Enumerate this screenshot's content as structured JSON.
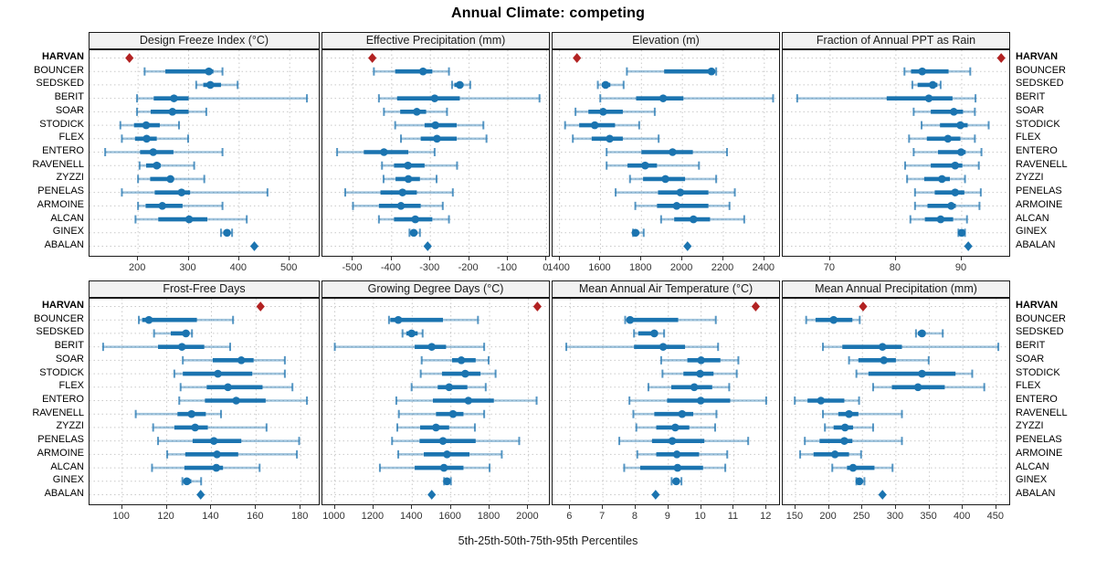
{
  "title": "Annual Climate: competing",
  "xlabel": "5th-25th-50th-75th-95th Percentiles",
  "chart_data": {
    "type": "dot-whisker percentile plot (5th-25th-50th-75th-95th)",
    "title": "Annual Climate: competing",
    "xlabel": "5th-25th-50th-75th-95th Percentiles",
    "legend": "thin whisker = 5th-95th, thick bar = 25th-75th, dot = median; HARVAN shown as red diamond, ABALAN as blue diamond",
    "rows": [
      "HARVAN",
      "BOUNCER",
      "SEDSKED",
      "BERIT",
      "SOAR",
      "STODICK",
      "FLEX",
      "ENTERO",
      "RAVENELL",
      "ZYZZI",
      "PENELAS",
      "ARMOINE",
      "ALCAN",
      "GINEX",
      "ABALAN"
    ],
    "bold_row": "HARVAN",
    "marker_rows": {
      "HARVAN": "red-diamond",
      "ABALAN": "blue-diamond"
    },
    "colors": {
      "blue": "#1b74b0",
      "whisker": "rgba(31,116,176,0.42)",
      "cap": "rgba(31,116,176,0.75)",
      "red": "#b22222",
      "grid": "#c9c9c9",
      "header_bg": "#f2f2f2",
      "border": "#1a1a1a"
    },
    "grid": "dotted horizontal per row and vertical per tick",
    "panels": [
      {
        "title": "Design Freeze Index (°C)",
        "ticks": [
          200,
          300,
          400,
          500
        ],
        "domain": [
          104,
          561
        ],
        "series": {
          "HARVAN": 183,
          "BOUNCER": [
            213,
            254,
            340,
            349,
            367
          ],
          "SEDSKED": [
            315,
            329,
            343,
            364,
            397
          ],
          "BERIT": [
            198,
            231,
            271,
            300,
            534
          ],
          "SOAR": [
            198,
            225,
            268,
            300,
            335
          ],
          "STODICK": [
            165,
            192,
            216,
            243,
            281
          ],
          "FLEX": [
            168,
            194,
            217,
            237,
            299
          ],
          "ENTERO": [
            135,
            204,
            230,
            270,
            367
          ],
          "RAVENELL": [
            203,
            216,
            237,
            245,
            311
          ],
          "ZYZZI": [
            200,
            224,
            264,
            270,
            331
          ],
          "PENELAS": [
            168,
            233,
            286,
            303,
            456
          ],
          "ARMOINE": [
            200,
            215,
            248,
            288,
            367
          ],
          "ALCAN": [
            195,
            240,
            301,
            337,
            415
          ],
          "GINEX": [
            364,
            369,
            376,
            381,
            386
          ],
          "ABALAN": 430
        }
      },
      {
        "title": "Effective Precipitation (mm)",
        "ticks": [
          -500,
          -400,
          -300,
          -200,
          -100,
          0
        ],
        "domain": [
          -579,
          11
        ],
        "series": {
          "HARVAN": -450,
          "BOUNCER": [
            -446,
            -391,
            -319,
            -295,
            -252
          ],
          "SEDSKED": [
            -244,
            -238,
            -224,
            -215,
            -197
          ],
          "BERIT": [
            -433,
            -386,
            -289,
            -224,
            -18
          ],
          "SOAR": [
            -420,
            -378,
            -335,
            -311,
            -257
          ],
          "STODICK": [
            -391,
            -315,
            -287,
            -232,
            -163
          ],
          "FLEX": [
            -376,
            -325,
            -283,
            -232,
            -155
          ],
          "ENTERO": [
            -541,
            -472,
            -420,
            -357,
            -289
          ],
          "RAVENELL": [
            -425,
            -394,
            -358,
            -315,
            -231
          ],
          "ZYZZI": [
            -421,
            -390,
            -357,
            -327,
            -284
          ],
          "PENELAS": [
            -520,
            -429,
            -372,
            -335,
            -242
          ],
          "ARMOINE": [
            -500,
            -433,
            -376,
            -325,
            -268
          ],
          "ALCAN": [
            -433,
            -394,
            -339,
            -295,
            -252
          ],
          "GINEX": [
            -354,
            -349,
            -343,
            -338,
            -327
          ],
          "ABALAN": -307
        }
      },
      {
        "title": "Elevation (m)",
        "ticks": [
          1400,
          1600,
          1800,
          2000,
          2200,
          2400
        ],
        "domain": [
          1366,
          2481
        ],
        "series": {
          "HARVAN": 1485,
          "BOUNCER": [
            1729,
            1911,
            2142,
            2152,
            2165
          ],
          "SEDSKED": [
            1587,
            1607,
            1625,
            1648,
            1713
          ],
          "BERIT": [
            1599,
            1774,
            1906,
            2005,
            2443
          ],
          "SOAR": [
            1478,
            1541,
            1613,
            1709,
            1865
          ],
          "STODICK": [
            1427,
            1496,
            1572,
            1671,
            1789
          ],
          "FLEX": [
            1465,
            1557,
            1645,
            1709,
            1884
          ],
          "ENTERO": [
            1630,
            1800,
            1952,
            2051,
            2218
          ],
          "RAVENELL": [
            1630,
            1732,
            1818,
            1876,
            2081
          ],
          "ZYZZI": [
            1744,
            1808,
            1917,
            2013,
            2165
          ],
          "PENELAS": [
            1674,
            1881,
            1990,
            2127,
            2256
          ],
          "ARMOINE": [
            1770,
            1876,
            1972,
            2127,
            2230
          ],
          "ALCAN": [
            1896,
            1960,
            2054,
            2135,
            2302
          ],
          "GINEX": [
            1759,
            1765,
            1771,
            1788,
            1811
          ],
          "ABALAN": 2025
        }
      },
      {
        "title": "Fraction of Annual PPT as Rain",
        "ticks": [
          70,
          80,
          90
        ],
        "domain": [
          62.8,
          97.5
        ],
        "series": {
          "HARVAN": 96,
          "BOUNCER": [
            81.3,
            82.3,
            84.0,
            88.0,
            91.3
          ],
          "SEDSKED": [
            82.5,
            83.3,
            85.6,
            86.3,
            86.8
          ],
          "BERIT": [
            65.0,
            78.6,
            85.0,
            88.6,
            92.1
          ],
          "SOAR": [
            82.7,
            85.3,
            88.8,
            90.2,
            92.0
          ],
          "STODICK": [
            83.9,
            86.7,
            89.8,
            90.9,
            94.1
          ],
          "FLEX": [
            82.0,
            84.7,
            87.9,
            89.8,
            92.0
          ],
          "ENTERO": [
            82.7,
            86.4,
            89.9,
            90.6,
            93.0
          ],
          "RAVENELL": [
            81.4,
            85.3,
            89.0,
            90.1,
            92.6
          ],
          "ZYZZI": [
            81.7,
            84.3,
            87.0,
            88.2,
            90.5
          ],
          "PENELAS": [
            82.9,
            85.9,
            89.0,
            90.4,
            92.9
          ],
          "ARMOINE": [
            82.9,
            84.8,
            88.4,
            89.1,
            92.7
          ],
          "ALCAN": [
            82.2,
            84.4,
            86.8,
            88.7,
            90.8
          ],
          "GINEX": [
            89.5,
            89.8,
            90.0,
            90.2,
            90.5
          ],
          "ABALAN": 91.0
        }
      },
      {
        "title": "Frost-Free Days",
        "ticks": [
          100,
          120,
          140,
          160,
          180
        ],
        "domain": [
          85.4,
          188.9
        ],
        "series": {
          "HARVAN": 162,
          "BOUNCER": [
            107.5,
            109.0,
            112.0,
            133.5,
            149.7
          ],
          "SEDSKED": [
            114.3,
            121.8,
            128.6,
            129.7,
            131.3
          ],
          "BERIT": [
            91.5,
            116.1,
            126.8,
            136.8,
            148.4
          ],
          "SOAR": [
            127.2,
            140.6,
            153.4,
            158.9,
            172.9
          ],
          "STODICK": [
            123.4,
            127.2,
            142.9,
            158.3,
            172.9
          ],
          "FLEX": [
            126.2,
            137.9,
            147.4,
            162.9,
            176.3
          ],
          "ENTERO": [
            125.6,
            137.1,
            151.1,
            164.3,
            182.8
          ],
          "RAVENELL": [
            106.1,
            124.8,
            131.1,
            137.5,
            144.3
          ],
          "ZYZZI": [
            113.9,
            123.4,
            132.7,
            138.4,
            164.7
          ],
          "PENELAS": [
            116.1,
            131.6,
            141.1,
            153.4,
            179.3
          ],
          "ARMOINE": [
            120.2,
            128.3,
            142.5,
            152.0,
            178.3
          ],
          "ALCAN": [
            113.4,
            127.9,
            142.2,
            145.2,
            161.6
          ],
          "GINEX": [
            127.0,
            128.2,
            129.0,
            131.0,
            135.4
          ],
          "ABALAN": 135.2
        }
      },
      {
        "title": "Growing Degree Days (°C)",
        "ticks": [
          1000,
          1200,
          1400,
          1600,
          1800,
          2000
        ],
        "domain": [
          936,
          2116
        ],
        "series": {
          "HARVAN": 2047,
          "BOUNCER": [
            1280,
            1287,
            1328,
            1559,
            1740
          ],
          "SEDSKED": [
            1350,
            1370,
            1397,
            1428,
            1454
          ],
          "BERIT": [
            1000,
            1413,
            1501,
            1575,
            1772
          ],
          "SOAR": [
            1449,
            1606,
            1654,
            1728,
            1795
          ],
          "STODICK": [
            1444,
            1554,
            1674,
            1753,
            1831
          ],
          "FLEX": [
            1397,
            1532,
            1591,
            1685,
            1780
          ],
          "ENTERO": [
            1318,
            1507,
            1690,
            1822,
            2043
          ],
          "RAVENELL": [
            1331,
            1523,
            1611,
            1665,
            1772
          ],
          "ZYZZI": [
            1323,
            1441,
            1523,
            1591,
            1724
          ],
          "PENELAS": [
            1296,
            1438,
            1559,
            1728,
            1953
          ],
          "ARMOINE": [
            1328,
            1460,
            1580,
            1696,
            1863
          ],
          "ALCAN": [
            1233,
            1413,
            1564,
            1665,
            1800
          ],
          "GINEX": [
            1565,
            1573,
            1580,
            1588,
            1600
          ],
          "ABALAN": 1501
        }
      },
      {
        "title": "Mean Annual Air Temperature (°C)",
        "ticks": [
          6,
          7,
          8,
          9,
          10,
          11,
          12
        ],
        "domain": [
          5.46,
          12.44
        ],
        "series": {
          "HARVAN": 11.67,
          "BOUNCER": [
            7.68,
            7.74,
            7.83,
            9.3,
            10.45
          ],
          "SEDSKED": [
            7.95,
            8.08,
            8.57,
            8.63,
            8.87
          ],
          "BERIT": [
            5.88,
            7.95,
            8.84,
            9.51,
            10.52
          ],
          "SOAR": [
            8.78,
            9.58,
            10.0,
            10.59,
            11.14
          ],
          "STODICK": [
            8.82,
            9.46,
            9.97,
            10.38,
            11.09
          ],
          "FLEX": [
            8.39,
            9.09,
            9.79,
            10.34,
            10.86
          ],
          "ENTERO": [
            7.81,
            8.96,
            9.99,
            10.89,
            11.99
          ],
          "RAVENELL": [
            7.93,
            8.57,
            9.42,
            9.76,
            10.47
          ],
          "ZYZZI": [
            8.02,
            8.63,
            9.21,
            9.64,
            10.43
          ],
          "PENELAS": [
            7.5,
            8.5,
            9.12,
            10.1,
            11.44
          ],
          "ARMOINE": [
            8.05,
            8.63,
            9.26,
            9.94,
            10.8
          ],
          "ALCAN": [
            7.65,
            8.14,
            9.28,
            10.06,
            10.74
          ],
          "GINEX": [
            9.1,
            9.18,
            9.24,
            9.3,
            9.4
          ],
          "ABALAN": 8.61
        }
      },
      {
        "title": "Mean Annual Precipitation (mm)",
        "ticks": [
          150,
          200,
          250,
          300,
          350,
          400,
          450
        ],
        "domain": [
          131,
          472
        ],
        "series": {
          "HARVAN": 251,
          "BOUNCER": [
            166,
            180,
            207,
            235,
            246
          ],
          "SEDSKED": [
            330,
            333,
            339,
            344,
            370
          ],
          "BERIT": [
            191,
            220,
            280,
            309,
            453
          ],
          "SOAR": [
            230,
            244,
            282,
            300,
            349
          ],
          "STODICK": [
            241,
            259,
            339,
            389,
            414
          ],
          "FLEX": [
            266,
            294,
            333,
            373,
            432
          ],
          "ENTERO": [
            149,
            168,
            188,
            223,
            245
          ],
          "RAVENELL": [
            191,
            214,
            230,
            244,
            309
          ],
          "ZYZZI": [
            194,
            207,
            224,
            236,
            266
          ],
          "PENELAS": [
            164,
            186,
            223,
            235,
            309
          ],
          "ARMOINE": [
            157,
            177,
            209,
            230,
            248
          ],
          "ALCAN": [
            205,
            227,
            236,
            268,
            295
          ],
          "GINEX": [
            241,
            243,
            245.5,
            248,
            253
          ],
          "ABALAN": 280
        }
      }
    ]
  }
}
